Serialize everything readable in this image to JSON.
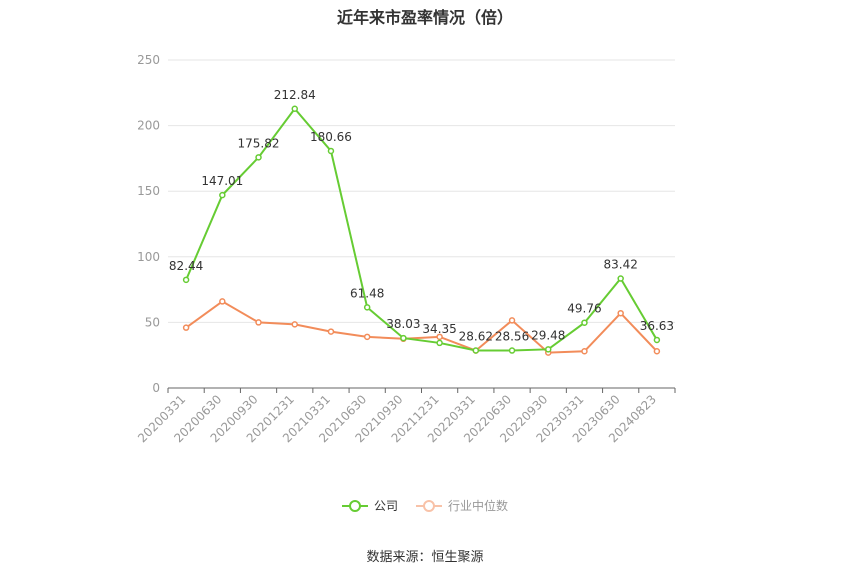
{
  "title": "近年来市盈率情况（倍）",
  "source": "数据来源：恒生聚源",
  "colors": {
    "company": "#66cc33",
    "industry": "#f28c5a",
    "grid": "#e6e6e6",
    "axis": "#999999",
    "label": "#333333"
  },
  "chart_data": {
    "type": "line",
    "categories": [
      "20200331",
      "20200630",
      "20200930",
      "20201231",
      "20210331",
      "20210630",
      "20210930",
      "20211231",
      "20220331",
      "20220630",
      "20220930",
      "20230331",
      "20230630",
      "20240823"
    ],
    "ylim": [
      0,
      250
    ],
    "yticks": [
      0,
      50,
      100,
      150,
      200,
      250
    ],
    "grid": true,
    "legend_position": "bottom",
    "series": [
      {
        "name": "公司",
        "values": [
          82.44,
          147.01,
          175.82,
          212.84,
          180.66,
          61.48,
          38.03,
          34.35,
          28.62,
          28.56,
          29.48,
          49.76,
          83.42,
          36.63
        ],
        "labels": true
      },
      {
        "name": "行业中位数",
        "values": [
          46,
          66,
          50,
          48.5,
          43,
          39,
          37.5,
          39,
          28.5,
          51.5,
          27,
          28,
          57,
          28
        ],
        "labels": false
      }
    ]
  }
}
